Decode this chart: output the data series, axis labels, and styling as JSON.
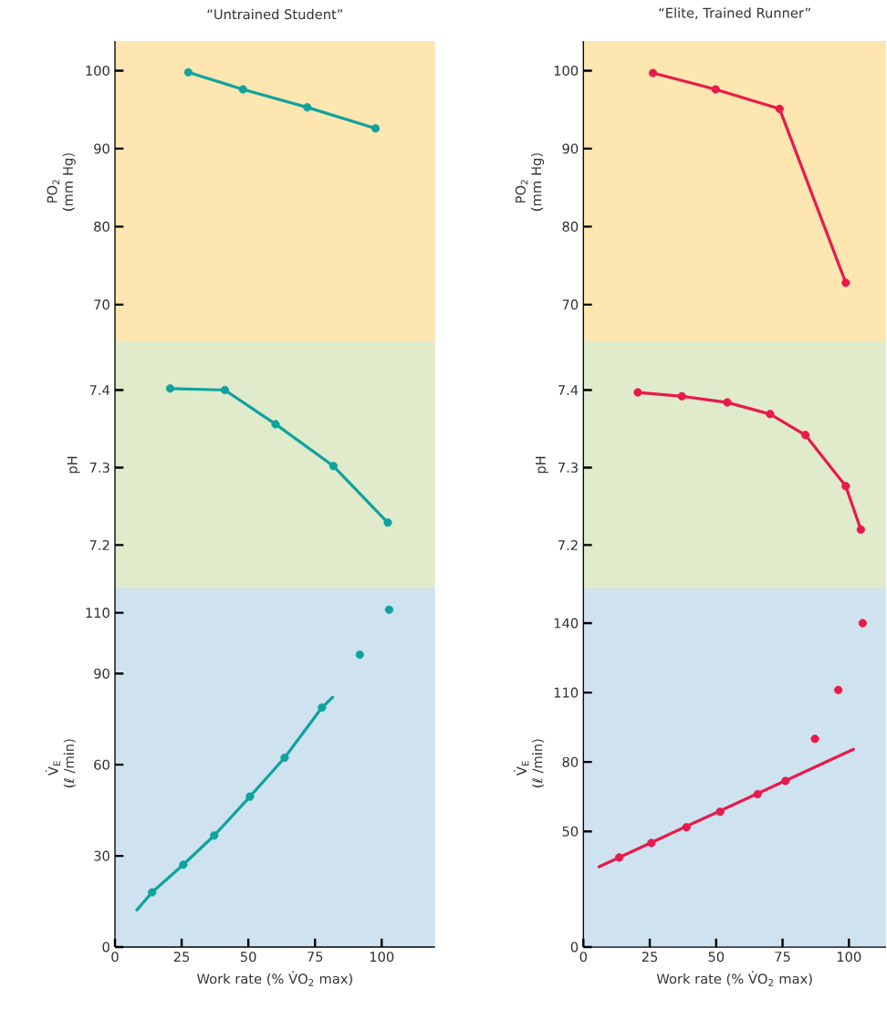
{
  "chart_data": [
    {
      "type": "line",
      "title": "“Untrained Student”",
      "ylabel": "PO$_{2}$ (mm Hg)",
      "xlim": [
        0,
        120
      ],
      "ylim": [
        65.3,
        103.8
      ],
      "yticks": [
        70,
        80,
        90,
        100
      ],
      "tick_labels": "y",
      "series": [
        {
          "marker": "circle",
          "color": "#10a39e",
          "x": [
            27.5,
            48.0,
            72.1,
            97.7
          ],
          "values": [
            99.8,
            97.6,
            95.3,
            92.6
          ]
        }
      ]
    },
    {
      "type": "line",
      "title": "“Elite, Trained Runner”",
      "ylabel": "PO$_{2}$ (mm Hg)",
      "xlim": [
        0,
        114
      ],
      "ylim": [
        65.3,
        103.8
      ],
      "yticks": [
        70,
        80,
        90,
        100
      ],
      "tick_labels": "y",
      "series": [
        {
          "marker": "circle",
          "color": "#e81a4b",
          "x": [
            26.2,
            49.8,
            73.9,
            98.8
          ],
          "values": [
            99.7,
            97.6,
            95.1,
            72.8
          ]
        }
      ]
    },
    {
      "type": "line",
      "ylabel": "pH",
      "xlim": [
        0,
        120
      ],
      "ylim": [
        7.144,
        7.463
      ],
      "yticks": [
        7.2,
        7.3,
        7.4
      ],
      "tick_labels": "y",
      "series": [
        {
          "marker": "circle",
          "color": "#10a39e",
          "x": [
            20.7,
            41.2,
            60.2,
            81.9,
            102.3
          ],
          "values": [
            7.402,
            7.4,
            7.356,
            7.302,
            7.229
          ]
        }
      ]
    },
    {
      "type": "line",
      "ylabel": "pH",
      "xlim": [
        0,
        114
      ],
      "ylim": [
        7.144,
        7.463
      ],
      "yticks": [
        7.2,
        7.3,
        7.4
      ],
      "tick_labels": "y",
      "series": [
        {
          "marker": "circle",
          "color": "#e81a4b",
          "x": [
            20.5,
            37.1,
            54.2,
            70.3,
            83.6,
            98.8,
            104.5
          ],
          "values": [
            7.397,
            7.392,
            7.384,
            7.369,
            7.342,
            7.276,
            7.22
          ]
        }
      ]
    },
    {
      "type": "line",
      "ylabel": "V̇$_{E}$ (ℓ /min)",
      "xlabel": "Work rate (% V̇O$_{2}$ max)",
      "xlim": [
        0,
        120
      ],
      "ylim": [
        0,
        118
      ],
      "xticks": [
        0,
        25,
        50,
        75,
        100
      ],
      "yticks": [
        0,
        30,
        60,
        90,
        110
      ],
      "series": [
        {
          "marker": "none",
          "color": "#10a39e",
          "x": [
            8.2,
            13.9,
            25.6,
            37.2,
            50.6,
            63.6,
            77.6,
            81.6
          ],
          "values": [
            12.2,
            18.0,
            27.1,
            36.7,
            49.5,
            62.3,
            78.8,
            82.2
          ]
        },
        {
          "type": "scatter",
          "marker": "circle",
          "color": "#10a39e",
          "x": [
            13.9,
            25.6,
            37.2,
            50.6,
            63.6,
            77.6,
            91.8,
            102.8
          ],
          "values": [
            18.0,
            27.1,
            36.7,
            49.5,
            62.3,
            78.8,
            96.2,
            111
          ]
        }
      ]
    },
    {
      "type": "line",
      "ylabel": "V̇$_{E}$ (ℓ /min)",
      "xlabel": "Work rate (% V̇O$_{2}$ max)",
      "xlim": [
        0,
        114
      ],
      "ylim": [
        0,
        155
      ],
      "xticks": [
        0,
        25,
        50,
        75,
        100
      ],
      "yticks": [
        0,
        50,
        80,
        110,
        140
      ],
      "series": [
        {
          "marker": "none",
          "color": "#e81a4b",
          "x": [
            5.9,
            101.7
          ],
          "values": [
            34.7,
            85.5
          ]
        },
        {
          "type": "scatter",
          "marker": "circle",
          "color": "#e81a4b",
          "x": [
            13.5,
            25.6,
            38.8,
            51.5,
            65.6,
            76.1,
            87.2,
            96.0,
            105.2
          ],
          "values": [
            38.7,
            45.0,
            51.8,
            58.5,
            66.1,
            71.8,
            90.0,
            111.1,
            140
          ]
        }
      ]
    }
  ]
}
